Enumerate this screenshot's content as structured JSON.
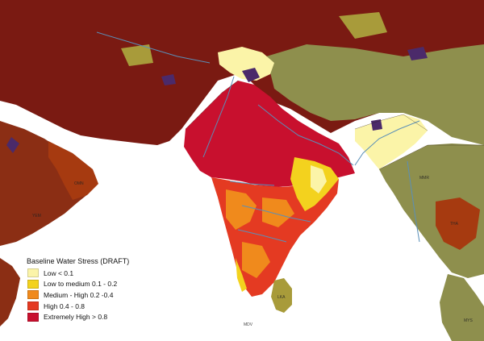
{
  "legend": {
    "title": "Baseline Water Stress (DRAFT)",
    "items": [
      {
        "label": "Low < 0.1",
        "color": "#fbf4a8"
      },
      {
        "label": "Low to medium 0.1 - 0.2",
        "color": "#f3d21e"
      },
      {
        "label": "Medium - High 0.2 -0.4",
        "color": "#f08a1c"
      },
      {
        "label": "High 0.4 - 0.8",
        "color": "#e43a22"
      },
      {
        "label": "Extremely High > 0.8",
        "color": "#c8102e"
      }
    ]
  },
  "labels": {
    "maldives": "MDV",
    "sri_lanka": "LKA",
    "oman": "OMN",
    "yemen": "YEM",
    "myanmar": "MMR",
    "thailand": "THA",
    "malaysia": "MYS"
  },
  "colors": {
    "ocean": "#ffffff",
    "dark_stress": "#7a1a12",
    "brown": "#8b2e14",
    "rust": "#a63a10",
    "olive": "#8e8f4d",
    "khaki": "#a89b3a",
    "purple": "#4b2a6a",
    "river": "#5a8fb8"
  }
}
